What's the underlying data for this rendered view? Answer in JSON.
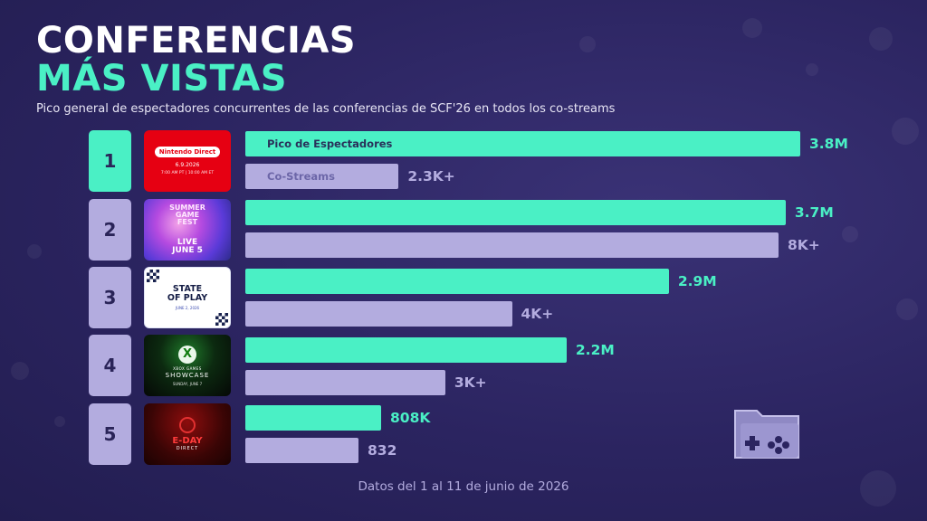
{
  "header": {
    "title_line1": "CONFERENCIAS",
    "title_line2": "MÁS VISTAS",
    "subtitle": "Pico general de espectadores concurrentes de las conferencias de SCF'26 en todos los co-streams"
  },
  "legend": {
    "peak_label": "Pico de Espectadores",
    "co_label": "Co-Streams"
  },
  "thumbnails": {
    "nintendo": {
      "brand": "Nintendo Direct",
      "date": "6.9.2026",
      "time": "7:00 AM PT | 10:00 AM ET"
    },
    "sgf": {
      "logo_lines": [
        "SUMMER",
        "GAME",
        "FEST"
      ],
      "live": "LIVE",
      "date": "JUNE 5"
    },
    "sop": {
      "title_line1": "STATE",
      "title_line2": "OF PLAY",
      "date": "JUNE 2, 2026"
    },
    "xbox": {
      "logo": "X",
      "sub": "XBOX GAMES",
      "title": "SHOWCASE",
      "date": "SUNDAY, JUNE 7"
    },
    "gears": {
      "title": "E-DAY",
      "sub": "DIRECT"
    }
  },
  "footer": {
    "text": "Datos del 1 al 11 de junio de 2026"
  },
  "colors": {
    "background": "#2b2460",
    "peak": "#4af0c5",
    "co_streams": "#b3acdf",
    "title_accent": "#4af0c5"
  },
  "icons": {
    "corner": "folder-gamepad-icon"
  },
  "chart_data": {
    "type": "bar",
    "orientation": "horizontal",
    "categories": [
      "1",
      "2",
      "3",
      "4",
      "5"
    ],
    "series": [
      {
        "name": "Pico de Espectadores",
        "values": [
          3800000,
          3700000,
          2900000,
          2200000,
          808000
        ],
        "labels": [
          "3.8M",
          "3.7M",
          "2.9M",
          "2.2M",
          "808K"
        ]
      },
      {
        "name": "Co-Streams",
        "values": [
          2300,
          8000,
          4000,
          3000,
          832
        ],
        "labels": [
          "2.3K+",
          "8K+",
          "4K+",
          "3K+",
          "832"
        ]
      }
    ]
  }
}
